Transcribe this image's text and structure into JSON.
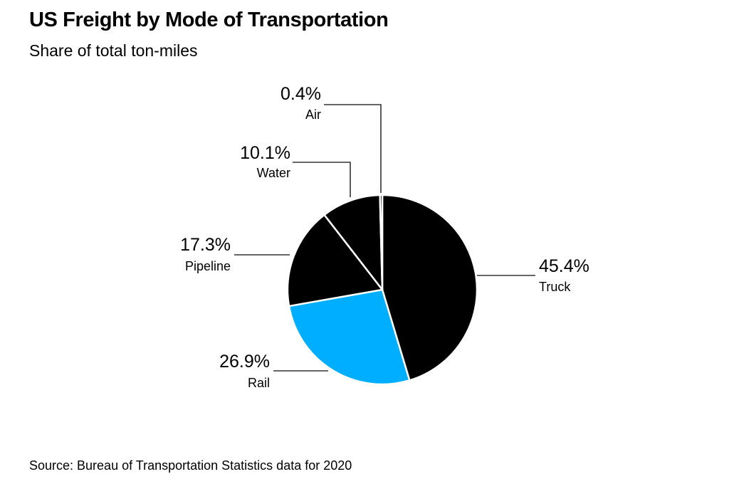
{
  "chart_data": {
    "type": "pie",
    "title": "US Freight by Mode of Transportation",
    "subtitle": "Share of total ton-miles",
    "source": "Source: Bureau of Transportation Statistics data for 2020",
    "unit": "%",
    "start_angle": "12 o'clock",
    "direction": "clockwise",
    "slices": [
      {
        "label": "Truck",
        "value": 45.4,
        "value_label": "45.4%",
        "color": "#000000"
      },
      {
        "label": "Rail",
        "value": 26.9,
        "value_label": "26.9%",
        "color": "#00AEFF"
      },
      {
        "label": "Pipeline",
        "value": 17.3,
        "value_label": "17.3%",
        "color": "#000000"
      },
      {
        "label": "Water",
        "value": 10.1,
        "value_label": "10.1%",
        "color": "#000000"
      },
      {
        "label": "Air",
        "value": 0.4,
        "value_label": "0.4%",
        "color": "#000000"
      }
    ],
    "slice_separator_color": "#ffffff"
  }
}
